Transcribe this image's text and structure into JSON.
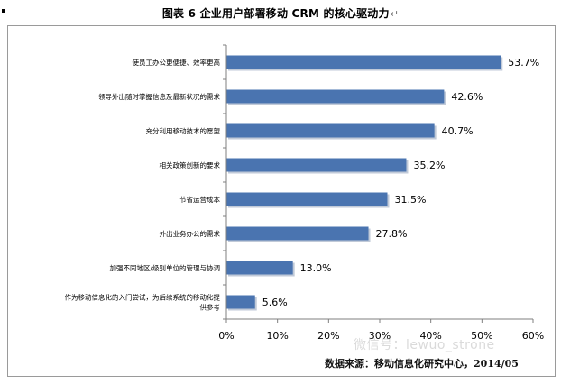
{
  "page": {
    "title": "图表 6 企业用户部署移动 CRM 的核心驱动力",
    "title_mark": "↵",
    "source": "数据来源：移动信息化研究中心，2014/05",
    "watermark": "微信号：lewuo_strone"
  },
  "chart_data": {
    "type": "bar",
    "orientation": "horizontal",
    "categories": [
      "使员工办公更便捷、效率更高",
      "领导外出随时掌握信息及最新状况的需求",
      "充分利用移动技术的愿望",
      "相关政策创新的要求",
      "节省运营成本",
      "外出业务办公的需求",
      "加强不同地区/级别单位的管理与协调",
      "作为移动信息化的入门尝试，为后续系统的移动化提供参考"
    ],
    "category_lines": [
      [
        "使员工办公更便捷、效率更高"
      ],
      [
        "领导外出随时掌握信息及最新状况的需求"
      ],
      [
        "充分利用移动技术的愿望"
      ],
      [
        "相关政策创新的要求"
      ],
      [
        "节省运营成本"
      ],
      [
        "外出业务办公的需求"
      ],
      [
        "加强不同地区/级别单位的管理与协调"
      ],
      [
        "作为移动信息化的入门尝试，为后续系统的移动化提",
        "供参考"
      ]
    ],
    "values": [
      53.7,
      42.6,
      40.7,
      35.2,
      31.5,
      27.8,
      13.0,
      5.6
    ],
    "data_labels": [
      "53.7%",
      "42.6%",
      "40.7%",
      "35.2%",
      "31.5%",
      "27.8%",
      "13.0%",
      "5.6%"
    ],
    "xlim": [
      0,
      60
    ],
    "xticks": [
      0,
      10,
      20,
      30,
      40,
      50,
      60
    ],
    "xtick_labels": [
      "0%",
      "10%",
      "20%",
      "30%",
      "40%",
      "50%",
      "60%"
    ],
    "title": "图表 6 企业用户部署移动 CRM 的核心驱动力",
    "xlabel": "",
    "ylabel": "",
    "grid": false,
    "legend": "none",
    "colors": {
      "bar": "#4a74b0",
      "bar_shadow": "#8e9fb8",
      "axis": "#7f7f7f",
      "frame": "#9a9a9a"
    }
  }
}
